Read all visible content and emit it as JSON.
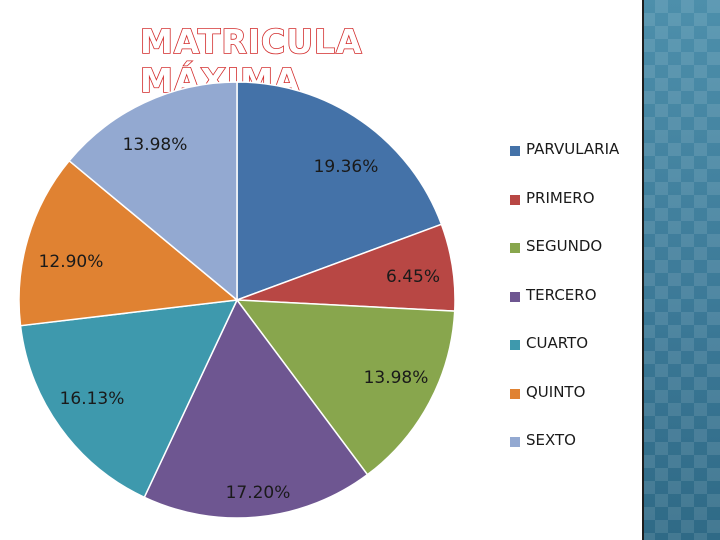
{
  "chart_data": {
    "type": "pie",
    "title": "MATRICULA MÁXIMA",
    "start_angle_deg": 0,
    "direction": "clockwise",
    "slices": [
      {
        "name": "PARVULARIA",
        "value": 19.36,
        "label": "19.36%",
        "color": "#4472a8"
      },
      {
        "name": "PRIMERO",
        "value": 6.45,
        "label": "6.45%",
        "color": "#b84744"
      },
      {
        "name": "SEGUNDO",
        "value": 13.98,
        "label": "13.98%",
        "color": "#88a64d"
      },
      {
        "name": "TERCERO",
        "value": 17.2,
        "label": "17.20%",
        "color": "#6e5691"
      },
      {
        "name": "CUARTO",
        "value": 16.13,
        "label": "16.13%",
        "color": "#3e99ad"
      },
      {
        "name": "QUINTO",
        "value": 12.9,
        "label": "12.90%",
        "color": "#e08232"
      },
      {
        "name": "SEXTO",
        "value": 13.98,
        "label": "13.98%",
        "color": "#93a9d1"
      }
    ],
    "legend_position": "right"
  }
}
